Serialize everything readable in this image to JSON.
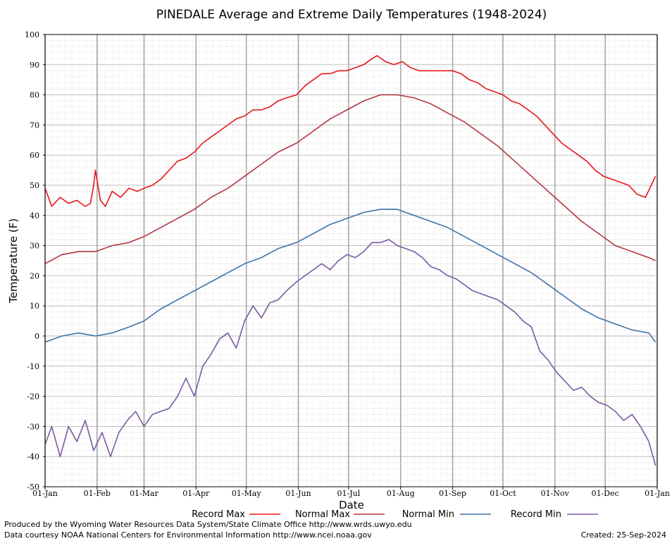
{
  "chart_data": {
    "type": "line",
    "title": "PINEDALE Average and Extreme Daily Temperatures (1948-2024)",
    "xlabel": "Date",
    "ylabel": "Temperature (F)",
    "ylim": [
      -50,
      100
    ],
    "yticks": [
      -50,
      -40,
      -30,
      -20,
      -10,
      0,
      10,
      20,
      30,
      40,
      50,
      60,
      70,
      80,
      90,
      100
    ],
    "x_range": [
      "01-Jan",
      "01-Jan"
    ],
    "x_ticks": [
      {
        "day": 0,
        "label": "01-Jan"
      },
      {
        "day": 31,
        "label": "01-Feb"
      },
      {
        "day": 59,
        "label": "01-Mar"
      },
      {
        "day": 90,
        "label": "01-Apr"
      },
      {
        "day": 120,
        "label": "01-May"
      },
      {
        "day": 151,
        "label": "01-Jun"
      },
      {
        "day": 181,
        "label": "01-Jul"
      },
      {
        "day": 212,
        "label": "01-Aug"
      },
      {
        "day": 243,
        "label": "01-Sep"
      },
      {
        "day": 273,
        "label": "01-Oct"
      },
      {
        "day": 304,
        "label": "01-Nov"
      },
      {
        "day": 334,
        "label": "01-Dec"
      },
      {
        "day": 365,
        "label": "01-Jan"
      }
    ],
    "grid": true,
    "legend_position": "bottom",
    "series": [
      {
        "name": "Record Max",
        "color": "#e8141c",
        "points": [
          {
            "x": "01-Jan",
            "y": 49
          },
          {
            "x": "05-Jan",
            "y": 43
          },
          {
            "x": "10-Jan",
            "y": 46
          },
          {
            "x": "15-Jan",
            "y": 44
          },
          {
            "x": "20-Jan",
            "y": 45
          },
          {
            "x": "25-Jan",
            "y": 43
          },
          {
            "x": "28-Jan",
            "y": 44
          },
          {
            "x": "30-Jan",
            "y": 50
          },
          {
            "x": "31-Jan",
            "y": 55
          },
          {
            "x": "03-Feb",
            "y": 45
          },
          {
            "x": "06-Feb",
            "y": 43
          },
          {
            "x": "10-Feb",
            "y": 48
          },
          {
            "x": "15-Feb",
            "y": 46
          },
          {
            "x": "20-Feb",
            "y": 49
          },
          {
            "x": "25-Feb",
            "y": 48
          },
          {
            "x": "01-Mar",
            "y": 49
          },
          {
            "x": "06-Mar",
            "y": 50
          },
          {
            "x": "11-Mar",
            "y": 52
          },
          {
            "x": "16-Mar",
            "y": 55
          },
          {
            "x": "21-Mar",
            "y": 58
          },
          {
            "x": "26-Mar",
            "y": 59
          },
          {
            "x": "31-Mar",
            "y": 61
          },
          {
            "x": "05-Apr",
            "y": 64
          },
          {
            "x": "10-Apr",
            "y": 66
          },
          {
            "x": "15-Apr",
            "y": 68
          },
          {
            "x": "20-Apr",
            "y": 70
          },
          {
            "x": "25-Apr",
            "y": 72
          },
          {
            "x": "30-Apr",
            "y": 73
          },
          {
            "x": "05-May",
            "y": 75
          },
          {
            "x": "10-May",
            "y": 75
          },
          {
            "x": "15-May",
            "y": 76
          },
          {
            "x": "20-May",
            "y": 78
          },
          {
            "x": "25-May",
            "y": 79
          },
          {
            "x": "31-May",
            "y": 80
          },
          {
            "x": "05-Jun",
            "y": 83
          },
          {
            "x": "10-Jun",
            "y": 85
          },
          {
            "x": "15-Jun",
            "y": 87
          },
          {
            "x": "20-Jun",
            "y": 87
          },
          {
            "x": "25-Jun",
            "y": 88
          },
          {
            "x": "30-Jun",
            "y": 88
          },
          {
            "x": "05-Jul",
            "y": 89
          },
          {
            "x": "10-Jul",
            "y": 90
          },
          {
            "x": "15-Jul",
            "y": 92
          },
          {
            "x": "18-Jul",
            "y": 93
          },
          {
            "x": "23-Jul",
            "y": 91
          },
          {
            "x": "28-Jul",
            "y": 90
          },
          {
            "x": "02-Aug",
            "y": 91
          },
          {
            "x": "07-Aug",
            "y": 89
          },
          {
            "x": "12-Aug",
            "y": 88
          },
          {
            "x": "17-Aug",
            "y": 88
          },
          {
            "x": "22-Aug",
            "y": 88
          },
          {
            "x": "27-Aug",
            "y": 88
          },
          {
            "x": "01-Sep",
            "y": 88
          },
          {
            "x": "06-Sep",
            "y": 87
          },
          {
            "x": "11-Sep",
            "y": 85
          },
          {
            "x": "16-Sep",
            "y": 84
          },
          {
            "x": "21-Sep",
            "y": 82
          },
          {
            "x": "26-Sep",
            "y": 81
          },
          {
            "x": "01-Oct",
            "y": 80
          },
          {
            "x": "06-Oct",
            "y": 78
          },
          {
            "x": "11-Oct",
            "y": 77
          },
          {
            "x": "16-Oct",
            "y": 75
          },
          {
            "x": "21-Oct",
            "y": 73
          },
          {
            "x": "26-Oct",
            "y": 70
          },
          {
            "x": "31-Oct",
            "y": 67
          },
          {
            "x": "05-Nov",
            "y": 64
          },
          {
            "x": "10-Nov",
            "y": 62
          },
          {
            "x": "15-Nov",
            "y": 60
          },
          {
            "x": "20-Nov",
            "y": 58
          },
          {
            "x": "25-Nov",
            "y": 55
          },
          {
            "x": "30-Nov",
            "y": 53
          },
          {
            "x": "05-Dec",
            "y": 52
          },
          {
            "x": "10-Dec",
            "y": 51
          },
          {
            "x": "15-Dec",
            "y": 50
          },
          {
            "x": "20-Dec",
            "y": 47
          },
          {
            "x": "25-Dec",
            "y": 46
          },
          {
            "x": "31-Dec",
            "y": 53
          }
        ]
      },
      {
        "name": "Normal Max",
        "color": "#b3363f",
        "points": [
          {
            "x": "01-Jan",
            "y": 24
          },
          {
            "x": "11-Jan",
            "y": 27
          },
          {
            "x": "21-Jan",
            "y": 28
          },
          {
            "x": "31-Jan",
            "y": 28
          },
          {
            "x": "10-Feb",
            "y": 30
          },
          {
            "x": "20-Feb",
            "y": 31
          },
          {
            "x": "01-Mar",
            "y": 33
          },
          {
            "x": "11-Mar",
            "y": 36
          },
          {
            "x": "21-Mar",
            "y": 39
          },
          {
            "x": "31-Mar",
            "y": 42
          },
          {
            "x": "10-Apr",
            "y": 46
          },
          {
            "x": "20-Apr",
            "y": 49
          },
          {
            "x": "30-Apr",
            "y": 53
          },
          {
            "x": "10-May",
            "y": 57
          },
          {
            "x": "20-May",
            "y": 61
          },
          {
            "x": "31-May",
            "y": 64
          },
          {
            "x": "10-Jun",
            "y": 68
          },
          {
            "x": "20-Jun",
            "y": 72
          },
          {
            "x": "30-Jun",
            "y": 75
          },
          {
            "x": "10-Jul",
            "y": 78
          },
          {
            "x": "20-Jul",
            "y": 80
          },
          {
            "x": "30-Jul",
            "y": 80
          },
          {
            "x": "09-Aug",
            "y": 79
          },
          {
            "x": "19-Aug",
            "y": 77
          },
          {
            "x": "29-Aug",
            "y": 74
          },
          {
            "x": "08-Sep",
            "y": 71
          },
          {
            "x": "18-Sep",
            "y": 67
          },
          {
            "x": "28-Sep",
            "y": 63
          },
          {
            "x": "08-Oct",
            "y": 58
          },
          {
            "x": "18-Oct",
            "y": 53
          },
          {
            "x": "28-Oct",
            "y": 48
          },
          {
            "x": "07-Nov",
            "y": 43
          },
          {
            "x": "17-Nov",
            "y": 38
          },
          {
            "x": "27-Nov",
            "y": 34
          },
          {
            "x": "07-Dec",
            "y": 30
          },
          {
            "x": "17-Dec",
            "y": 28
          },
          {
            "x": "27-Dec",
            "y": 26
          },
          {
            "x": "31-Dec",
            "y": 25
          }
        ]
      },
      {
        "name": "Normal Min",
        "color": "#3f72a8",
        "points": [
          {
            "x": "01-Jan",
            "y": -2
          },
          {
            "x": "11-Jan",
            "y": 0
          },
          {
            "x": "21-Jan",
            "y": 1
          },
          {
            "x": "31-Jan",
            "y": 0
          },
          {
            "x": "10-Feb",
            "y": 1
          },
          {
            "x": "20-Feb",
            "y": 3
          },
          {
            "x": "01-Mar",
            "y": 5
          },
          {
            "x": "11-Mar",
            "y": 9
          },
          {
            "x": "21-Mar",
            "y": 12
          },
          {
            "x": "31-Mar",
            "y": 15
          },
          {
            "x": "10-Apr",
            "y": 18
          },
          {
            "x": "20-Apr",
            "y": 21
          },
          {
            "x": "30-Apr",
            "y": 24
          },
          {
            "x": "10-May",
            "y": 26
          },
          {
            "x": "20-May",
            "y": 29
          },
          {
            "x": "31-May",
            "y": 31
          },
          {
            "x": "10-Jun",
            "y": 34
          },
          {
            "x": "20-Jun",
            "y": 37
          },
          {
            "x": "30-Jun",
            "y": 39
          },
          {
            "x": "10-Jul",
            "y": 41
          },
          {
            "x": "20-Jul",
            "y": 42
          },
          {
            "x": "30-Jul",
            "y": 42
          },
          {
            "x": "09-Aug",
            "y": 40
          },
          {
            "x": "19-Aug",
            "y": 38
          },
          {
            "x": "29-Aug",
            "y": 36
          },
          {
            "x": "08-Sep",
            "y": 33
          },
          {
            "x": "18-Sep",
            "y": 30
          },
          {
            "x": "28-Sep",
            "y": 27
          },
          {
            "x": "08-Oct",
            "y": 24
          },
          {
            "x": "18-Oct",
            "y": 21
          },
          {
            "x": "28-Oct",
            "y": 17
          },
          {
            "x": "07-Nov",
            "y": 13
          },
          {
            "x": "17-Nov",
            "y": 9
          },
          {
            "x": "27-Nov",
            "y": 6
          },
          {
            "x": "07-Dec",
            "y": 4
          },
          {
            "x": "17-Dec",
            "y": 2
          },
          {
            "x": "27-Dec",
            "y": 1
          },
          {
            "x": "31-Dec",
            "y": -2
          }
        ]
      },
      {
        "name": "Record Min",
        "color": "#7b5aa0",
        "points": [
          {
            "x": "01-Jan",
            "y": -36
          },
          {
            "x": "05-Jan",
            "y": -30
          },
          {
            "x": "10-Jan",
            "y": -40
          },
          {
            "x": "15-Jan",
            "y": -30
          },
          {
            "x": "20-Jan",
            "y": -35
          },
          {
            "x": "25-Jan",
            "y": -28
          },
          {
            "x": "30-Jan",
            "y": -38
          },
          {
            "x": "04-Feb",
            "y": -32
          },
          {
            "x": "09-Feb",
            "y": -40
          },
          {
            "x": "14-Feb",
            "y": -32
          },
          {
            "x": "19-Feb",
            "y": -28
          },
          {
            "x": "24-Feb",
            "y": -25
          },
          {
            "x": "01-Mar",
            "y": -30
          },
          {
            "x": "06-Mar",
            "y": -26
          },
          {
            "x": "11-Mar",
            "y": -25
          },
          {
            "x": "16-Mar",
            "y": -24
          },
          {
            "x": "21-Mar",
            "y": -20
          },
          {
            "x": "26-Mar",
            "y": -14
          },
          {
            "x": "31-Mar",
            "y": -20
          },
          {
            "x": "05-Apr",
            "y": -10
          },
          {
            "x": "10-Apr",
            "y": -6
          },
          {
            "x": "15-Apr",
            "y": -1
          },
          {
            "x": "20-Apr",
            "y": 1
          },
          {
            "x": "25-Apr",
            "y": -4
          },
          {
            "x": "30-Apr",
            "y": 5
          },
          {
            "x": "05-May",
            "y": 10
          },
          {
            "x": "10-May",
            "y": 6
          },
          {
            "x": "15-May",
            "y": 11
          },
          {
            "x": "20-May",
            "y": 12
          },
          {
            "x": "25-May",
            "y": 15
          },
          {
            "x": "31-May",
            "y": 18
          },
          {
            "x": "05-Jun",
            "y": 20
          },
          {
            "x": "10-Jun",
            "y": 22
          },
          {
            "x": "15-Jun",
            "y": 24
          },
          {
            "x": "20-Jun",
            "y": 22
          },
          {
            "x": "25-Jun",
            "y": 25
          },
          {
            "x": "30-Jun",
            "y": 27
          },
          {
            "x": "05-Jul",
            "y": 26
          },
          {
            "x": "10-Jul",
            "y": 28
          },
          {
            "x": "15-Jul",
            "y": 31
          },
          {
            "x": "20-Jul",
            "y": 31
          },
          {
            "x": "25-Jul",
            "y": 32
          },
          {
            "x": "30-Jul",
            "y": 30
          },
          {
            "x": "04-Aug",
            "y": 29
          },
          {
            "x": "09-Aug",
            "y": 28
          },
          {
            "x": "14-Aug",
            "y": 26
          },
          {
            "x": "19-Aug",
            "y": 23
          },
          {
            "x": "24-Aug",
            "y": 22
          },
          {
            "x": "29-Aug",
            "y": 20
          },
          {
            "x": "03-Sep",
            "y": 19
          },
          {
            "x": "08-Sep",
            "y": 17
          },
          {
            "x": "13-Sep",
            "y": 15
          },
          {
            "x": "18-Sep",
            "y": 14
          },
          {
            "x": "23-Sep",
            "y": 13
          },
          {
            "x": "28-Sep",
            "y": 12
          },
          {
            "x": "03-Oct",
            "y": 10
          },
          {
            "x": "08-Oct",
            "y": 8
          },
          {
            "x": "13-Oct",
            "y": 5
          },
          {
            "x": "18-Oct",
            "y": 3
          },
          {
            "x": "23-Oct",
            "y": -5
          },
          {
            "x": "28-Oct",
            "y": -8
          },
          {
            "x": "02-Nov",
            "y": -12
          },
          {
            "x": "07-Nov",
            "y": -15
          },
          {
            "x": "12-Nov",
            "y": -18
          },
          {
            "x": "17-Nov",
            "y": -17
          },
          {
            "x": "22-Nov",
            "y": -20
          },
          {
            "x": "27-Nov",
            "y": -22
          },
          {
            "x": "02-Dec",
            "y": -23
          },
          {
            "x": "07-Dec",
            "y": -25
          },
          {
            "x": "12-Dec",
            "y": -28
          },
          {
            "x": "17-Dec",
            "y": -26
          },
          {
            "x": "22-Dec",
            "y": -30
          },
          {
            "x": "27-Dec",
            "y": -35
          },
          {
            "x": "31-Dec",
            "y": -43
          }
        ]
      }
    ]
  },
  "footer": {
    "producer": "Produced by the Wyoming Water Resources Data System/State Climate Office http://www.wrds.uwyo.edu",
    "courtesy": "Data courtesy NOAA National Centers for Environmental Information http://www.ncei.noaa.gov",
    "created": "Created:  25-Sep-2024"
  }
}
